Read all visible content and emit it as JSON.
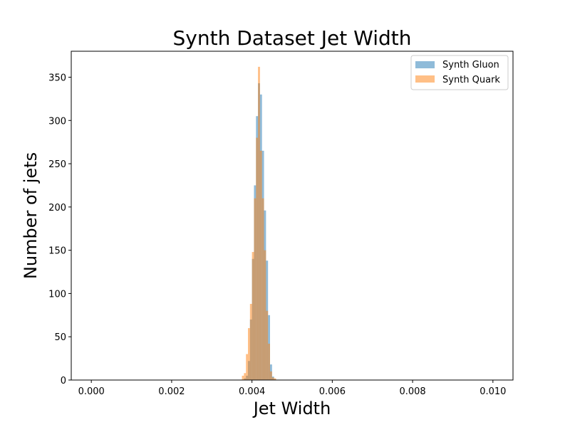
{
  "chart_data": {
    "type": "bar",
    "title": "Synth Dataset Jet Width",
    "xlabel": "Jet Width",
    "ylabel": "Number of jets",
    "xlim": [
      -0.0005,
      0.0105
    ],
    "ylim": [
      0,
      380
    ],
    "xticks": [
      0.0,
      0.002,
      0.004,
      0.006,
      0.008,
      0.01
    ],
    "xtick_labels": [
      "0.000",
      "0.002",
      "0.004",
      "0.006",
      "0.008",
      "0.010"
    ],
    "yticks": [
      0,
      50,
      100,
      150,
      200,
      250,
      300,
      350
    ],
    "ytick_labels": [
      "0",
      "50",
      "100",
      "150",
      "200",
      "250",
      "300",
      "350"
    ],
    "grid": false,
    "legend_position": "top-right",
    "bin_width": 5e-05,
    "series": [
      {
        "name": "Synth Gluon",
        "color": "#1f77b4",
        "opacity": 0.5,
        "bins": [
          {
            "x": 0.0038,
            "value": 2
          },
          {
            "x": 0.00385,
            "value": 5
          },
          {
            "x": 0.0039,
            "value": 22
          },
          {
            "x": 0.00395,
            "value": 70
          },
          {
            "x": 0.004,
            "value": 140
          },
          {
            "x": 0.00405,
            "value": 225
          },
          {
            "x": 0.0041,
            "value": 305
          },
          {
            "x": 0.00415,
            "value": 343
          },
          {
            "x": 0.0042,
            "value": 330
          },
          {
            "x": 0.00425,
            "value": 265
          },
          {
            "x": 0.0043,
            "value": 196
          },
          {
            "x": 0.00435,
            "value": 138
          },
          {
            "x": 0.0044,
            "value": 75
          },
          {
            "x": 0.00445,
            "value": 18
          },
          {
            "x": 0.0045,
            "value": 4
          },
          {
            "x": 0.00455,
            "value": 1
          }
        ]
      },
      {
        "name": "Synth Quark",
        "color": "#ff7f0e",
        "opacity": 0.5,
        "bins": [
          {
            "x": 0.00375,
            "value": 5
          },
          {
            "x": 0.0038,
            "value": 8
          },
          {
            "x": 0.00385,
            "value": 30
          },
          {
            "x": 0.0039,
            "value": 60
          },
          {
            "x": 0.00395,
            "value": 88
          },
          {
            "x": 0.004,
            "value": 148
          },
          {
            "x": 0.00405,
            "value": 210
          },
          {
            "x": 0.0041,
            "value": 280
          },
          {
            "x": 0.00415,
            "value": 362
          },
          {
            "x": 0.0042,
            "value": 265
          },
          {
            "x": 0.00425,
            "value": 210
          },
          {
            "x": 0.0043,
            "value": 150
          },
          {
            "x": 0.00435,
            "value": 80
          },
          {
            "x": 0.0044,
            "value": 42
          },
          {
            "x": 0.00445,
            "value": 10
          },
          {
            "x": 0.0045,
            "value": 3
          },
          {
            "x": 0.00455,
            "value": 2
          }
        ]
      }
    ]
  }
}
